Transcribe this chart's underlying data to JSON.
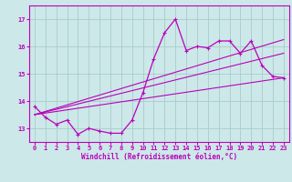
{
  "xlabel": "Windchill (Refroidissement éolien,°C)",
  "bg_color": "#cce8e8",
  "grid_color": "#aacccc",
  "line_color": "#bb00bb",
  "xlim": [
    -0.5,
    23.5
  ],
  "ylim": [
    12.5,
    17.5
  ],
  "yticks": [
    13,
    14,
    15,
    16,
    17
  ],
  "xticks": [
    0,
    1,
    2,
    3,
    4,
    5,
    6,
    7,
    8,
    9,
    10,
    11,
    12,
    13,
    14,
    15,
    16,
    17,
    18,
    19,
    20,
    21,
    22,
    23
  ],
  "series1_x": [
    0,
    1,
    2,
    3,
    4,
    5,
    6,
    7,
    8,
    9,
    10,
    11,
    12,
    13,
    14,
    15,
    16,
    17,
    18,
    19,
    20,
    21,
    22,
    23
  ],
  "series1_y": [
    13.8,
    13.4,
    13.15,
    13.3,
    12.78,
    13.0,
    12.9,
    12.82,
    12.82,
    13.3,
    14.3,
    15.55,
    16.5,
    17.0,
    15.85,
    16.0,
    15.95,
    16.2,
    16.2,
    15.75,
    16.2,
    15.3,
    14.9,
    14.85
  ],
  "line2_x": [
    0,
    23
  ],
  "line2_y": [
    13.5,
    16.25
  ],
  "line3_x": [
    0,
    23
  ],
  "line3_y": [
    13.5,
    15.75
  ],
  "line4_x": [
    0,
    23
  ],
  "line4_y": [
    13.5,
    14.85
  ]
}
